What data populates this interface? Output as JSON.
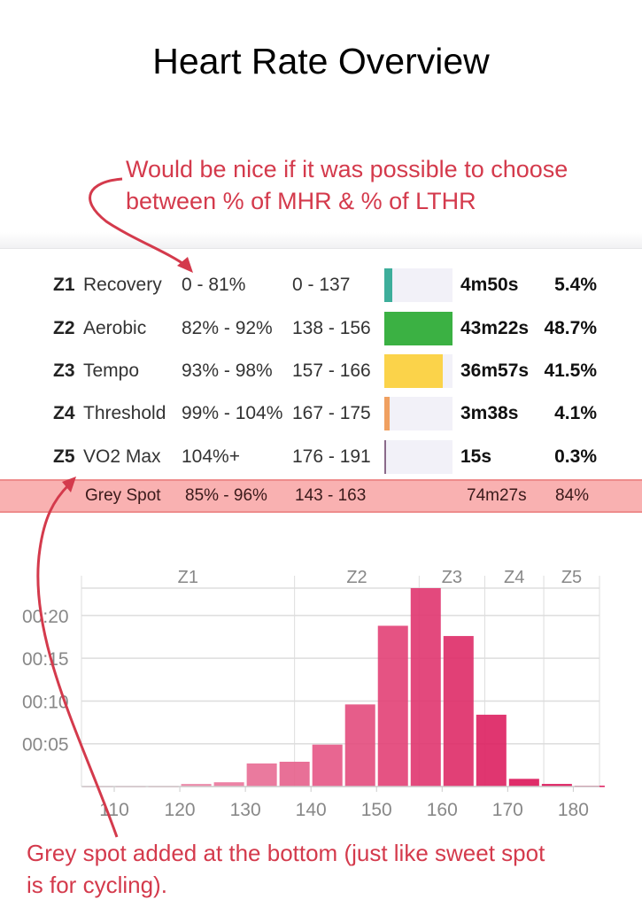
{
  "title": "Heart Rate Overview",
  "annotations": {
    "top_note_line1": "Would be nice if it was possible to choose",
    "top_note_line2": "between % of MHR & % of LTHR",
    "bottom_note_line1": "Grey spot added at the bottom (just like sweet spot",
    "bottom_note_line2": "is for cycling).",
    "color": "#d43a4c"
  },
  "zones": [
    {
      "code": "Z1",
      "name": "Recovery",
      "pct_range": "0 - 81%",
      "bpm_range": "0 - 137",
      "time": "4m50s",
      "share": "5.4%",
      "share_value": 5.4,
      "color": "#3dae9b"
    },
    {
      "code": "Z2",
      "name": "Aerobic",
      "pct_range": "82% - 92%",
      "bpm_range": "138 - 156",
      "time": "43m22s",
      "share": "48.7%",
      "share_value": 48.7,
      "color": "#3bb143"
    },
    {
      "code": "Z3",
      "name": "Tempo",
      "pct_range": "93% - 98%",
      "bpm_range": "157 - 166",
      "time": "36m57s",
      "share": "41.5%",
      "share_value": 41.5,
      "color": "#fbd34a"
    },
    {
      "code": "Z4",
      "name": "Threshold",
      "pct_range": "99% - 104%",
      "bpm_range": "167 - 175",
      "time": "3m38s",
      "share": "4.1%",
      "share_value": 4.1,
      "color": "#f0a060"
    },
    {
      "code": "Z5",
      "name": "VO2 Max",
      "pct_range": "104%+",
      "bpm_range": "176 - 191",
      "time": "15s",
      "share": "0.3%",
      "share_value": 0.3,
      "color": "#8a6a8a"
    }
  ],
  "grey_spot": {
    "name": "Grey Spot",
    "pct_range": "85% - 96%",
    "bpm_range": "143 - 163",
    "time": "74m27s",
    "share": "84%"
  },
  "chart_data": {
    "type": "bar",
    "xlabel": "",
    "ylabel": "",
    "x_ticks": [
      "110",
      "120",
      "130",
      "140",
      "150",
      "160",
      "170",
      "180"
    ],
    "x_tick_values": [
      110,
      120,
      130,
      140,
      150,
      160,
      170,
      180
    ],
    "y_ticks": [
      "00:05",
      "00:10",
      "00:15",
      "00:20"
    ],
    "y_tick_values": [
      5,
      10,
      15,
      20
    ],
    "xlim": [
      105,
      184
    ],
    "ylim": [
      0,
      23.2
    ],
    "bin_width": 5,
    "bin_starts": [
      105,
      110,
      115,
      120,
      125,
      130,
      135,
      140,
      145,
      150,
      155,
      160,
      165,
      170,
      175,
      180
    ],
    "values": [
      0.07,
      0.07,
      0.07,
      0.3,
      0.5,
      2.7,
      2.9,
      4.9,
      9.6,
      18.8,
      23.2,
      17.6,
      8.4,
      0.9,
      0.3,
      0.1
    ],
    "zone_bands": [
      {
        "label": "Z1",
        "from": 105,
        "to": 137.5
      },
      {
        "label": "Z2",
        "from": 137.5,
        "to": 156.5
      },
      {
        "label": "Z3",
        "from": 156.5,
        "to": 166.5
      },
      {
        "label": "Z4",
        "from": 166.5,
        "to": 175.5
      },
      {
        "label": "Z5",
        "from": 175.5,
        "to": 184
      }
    ],
    "grid": true,
    "bar_color_light": "#f0a0b8",
    "bar_color_dark": "#d8004a"
  }
}
